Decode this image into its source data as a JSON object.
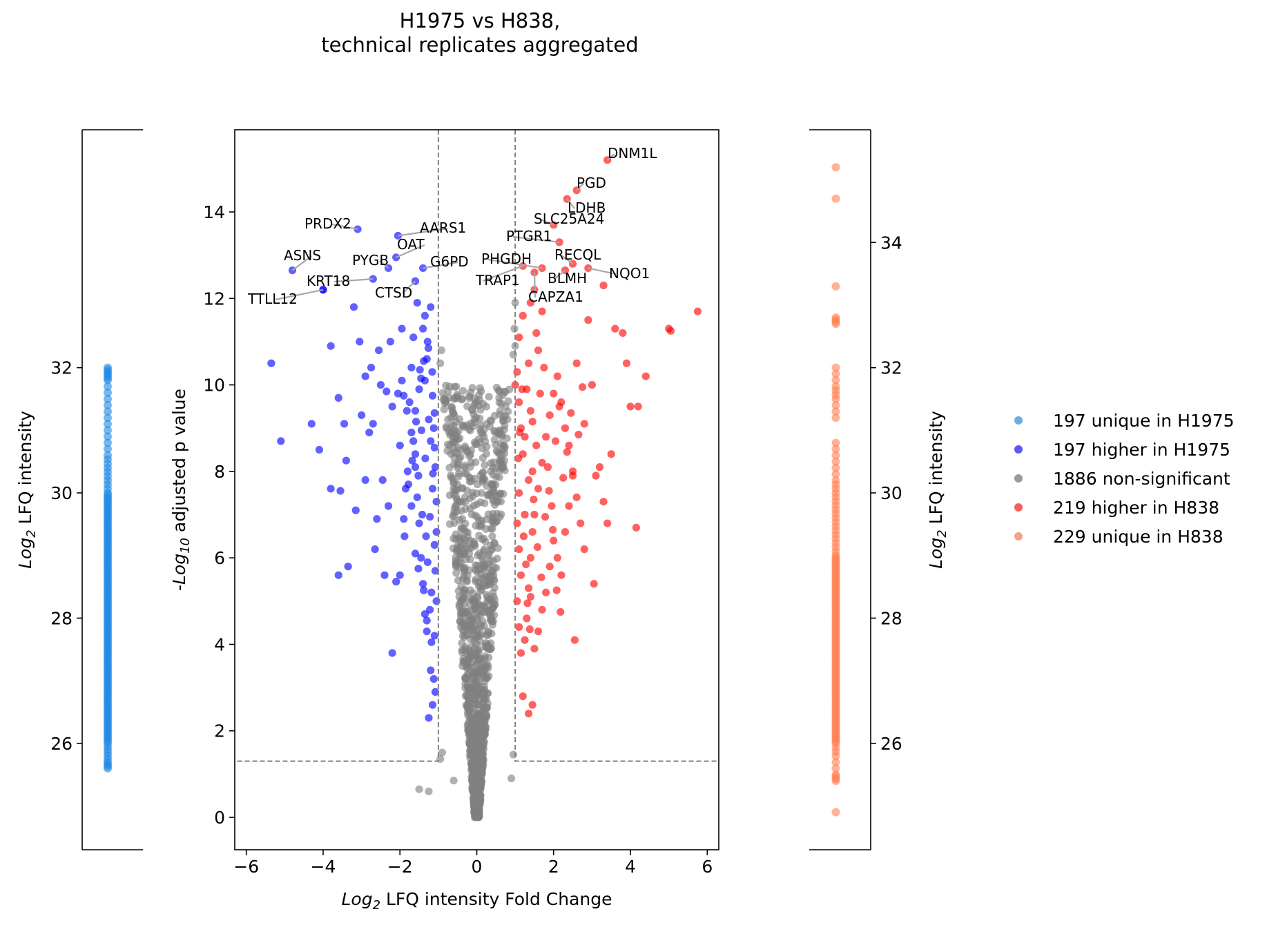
{
  "chart_data": {
    "type": "scatter",
    "title": "H1975 vs H838,\ntechnical replicates aggregated",
    "volcano": {
      "xlabel_log": "Log",
      "xlabel_sub": "2",
      "xlabel_rest": " LFQ intensity Fold Change",
      "ylabel_prefix": "-",
      "ylabel_log": "Log",
      "ylabel_sub": "10",
      "ylabel_rest": " adjusted p value",
      "xlim": [
        -6.3,
        6.3
      ],
      "ylim": [
        -0.75,
        15.9
      ],
      "xticks": [
        -6,
        -4,
        -2,
        0,
        2,
        4,
        6
      ],
      "xtick_labels": [
        "−6",
        "−4",
        "−2",
        "0",
        "2",
        "4",
        "6"
      ],
      "yticks": [
        0,
        2,
        4,
        6,
        8,
        10,
        12,
        14
      ],
      "ytick_labels": [
        "0",
        "2",
        "4",
        "6",
        "8",
        "10",
        "12",
        "14"
      ],
      "fc_threshold": 1,
      "p_threshold": 1.3,
      "labeled_points": [
        {
          "gene": "DNM1L",
          "x": 3.4,
          "y": 15.2
        },
        {
          "gene": "PGD",
          "x": 2.6,
          "y": 14.5
        },
        {
          "gene": "LDHB",
          "x": 2.35,
          "y": 14.3
        },
        {
          "gene": "SLC25A24",
          "x": 2.0,
          "y": 13.7
        },
        {
          "gene": "PTGR1",
          "x": 2.15,
          "y": 13.3
        },
        {
          "gene": "RECQL",
          "x": 2.5,
          "y": 12.8
        },
        {
          "gene": "NQO1",
          "x": 2.9,
          "y": 12.7
        },
        {
          "gene": "BLMH",
          "x": 2.3,
          "y": 12.65
        },
        {
          "gene": "CAPZA1",
          "x": 1.5,
          "y": 12.6
        },
        {
          "gene": "PHGDH",
          "x": 1.7,
          "y": 12.7
        },
        {
          "gene": "TRAP1",
          "x": 1.2,
          "y": 12.75
        },
        {
          "gene": "G6PD",
          "x": -1.4,
          "y": 12.7
        },
        {
          "gene": "AARS1",
          "x": -2.05,
          "y": 13.45
        },
        {
          "gene": "OAT",
          "x": -2.1,
          "y": 12.95
        },
        {
          "gene": "PYGB",
          "x": -2.3,
          "y": 12.7
        },
        {
          "gene": "PRDX2",
          "x": -3.1,
          "y": 13.6
        },
        {
          "gene": "ASNS",
          "x": -4.8,
          "y": 12.65
        },
        {
          "gene": "KRT18",
          "x": -2.7,
          "y": 12.45
        },
        {
          "gene": "CTSD",
          "x": -1.6,
          "y": 12.4
        },
        {
          "gene": "TTLL12",
          "x": -4.0,
          "y": 12.2
        }
      ],
      "sig_down_points": [
        [
          -5.35,
          10.5
        ],
        [
          -5.1,
          8.7
        ],
        [
          -4.1,
          8.5
        ],
        [
          -3.8,
          7.6
        ],
        [
          -3.55,
          7.55
        ],
        [
          -3.8,
          10.9
        ],
        [
          -4.0,
          12.2
        ],
        [
          -4.3,
          9.1
        ],
        [
          -3.6,
          9.7
        ],
        [
          -3.2,
          11.8
        ],
        [
          -3.05,
          11.0
        ],
        [
          -2.9,
          10.2
        ],
        [
          -2.55,
          10.8
        ],
        [
          -2.7,
          9.1
        ],
        [
          -2.35,
          9.85
        ],
        [
          -2.2,
          9.5
        ],
        [
          -2.05,
          9.8
        ],
        [
          -2.0,
          8.6
        ],
        [
          -2.3,
          7.2
        ],
        [
          -2.6,
          6.9
        ],
        [
          -2.9,
          7.8
        ],
        [
          -3.15,
          7.1
        ],
        [
          -3.4,
          8.25
        ],
        [
          -3.35,
          5.8
        ],
        [
          -3.6,
          5.6
        ],
        [
          -2.65,
          6.2
        ],
        [
          -2.4,
          5.6
        ],
        [
          -2.1,
          5.45
        ],
        [
          -2.0,
          5.6
        ],
        [
          -2.2,
          3.8
        ],
        [
          -1.9,
          6.9
        ],
        [
          -1.85,
          7.6
        ],
        [
          -1.8,
          8.0
        ],
        [
          -1.7,
          7.2
        ],
        [
          -1.95,
          10.1
        ],
        [
          -1.7,
          10.4
        ],
        [
          -1.6,
          9.4
        ],
        [
          -1.5,
          9.9
        ],
        [
          -1.4,
          11.3
        ],
        [
          -1.35,
          11.6
        ],
        [
          -1.3,
          10.6
        ],
        [
          -1.25,
          9.2
        ],
        [
          -1.2,
          8.7
        ],
        [
          -1.15,
          7.6
        ],
        [
          -1.1,
          6.3
        ],
        [
          -1.05,
          6.6
        ],
        [
          -1.05,
          5.0
        ],
        [
          -1.1,
          4.2
        ],
        [
          -1.2,
          3.4
        ],
        [
          -1.15,
          2.6
        ],
        [
          -1.25,
          2.3
        ],
        [
          -1.3,
          4.3
        ],
        [
          -1.35,
          4.7
        ],
        [
          -1.4,
          5.4
        ],
        [
          -1.45,
          6.0
        ],
        [
          -1.5,
          6.8
        ],
        [
          -1.55,
          7.4
        ],
        [
          -1.6,
          8.1
        ],
        [
          -1.65,
          8.7
        ],
        [
          -1.75,
          9.6
        ],
        [
          -1.45,
          10.15
        ],
        [
          -1.38,
          10.55
        ],
        [
          -1.28,
          11.0
        ],
        [
          -1.2,
          11.8
        ],
        [
          -1.15,
          9.75
        ],
        [
          -1.12,
          9.0
        ],
        [
          -1.08,
          8.1
        ],
        [
          -1.05,
          7.3
        ],
        [
          -1.08,
          5.7
        ],
        [
          -1.18,
          5.2
        ],
        [
          -1.22,
          4.8
        ],
        [
          -1.28,
          5.9
        ],
        [
          -1.32,
          6.5
        ],
        [
          -1.42,
          7.0
        ],
        [
          -1.52,
          7.9
        ],
        [
          -1.6,
          8.4
        ],
        [
          -1.7,
          8.9
        ],
        [
          -1.82,
          9.4
        ],
        [
          -1.9,
          9.75
        ],
        [
          -2.45,
          7.8
        ],
        [
          -2.8,
          8.9
        ],
        [
          -3.0,
          9.3
        ],
        [
          -2.5,
          10.0
        ],
        [
          -2.25,
          11.0
        ],
        [
          -1.95,
          11.3
        ],
        [
          -1.55,
          11.9
        ],
        [
          -1.65,
          11.1
        ],
        [
          -1.35,
          10.1
        ],
        [
          -1.48,
          10.35
        ],
        [
          -1.58,
          9.15
        ],
        [
          -1.68,
          8.25
        ],
        [
          -1.78,
          7.7
        ],
        [
          -1.88,
          6.5
        ],
        [
          -1.6,
          6.1
        ],
        [
          -1.52,
          5.75
        ],
        [
          -1.38,
          5.25
        ],
        [
          -1.3,
          4.55
        ],
        [
          -1.18,
          4.05
        ],
        [
          -1.12,
          3.2
        ],
        [
          -1.08,
          2.9
        ],
        [
          -2.75,
          10.4
        ],
        [
          -3.45,
          9.1
        ],
        [
          -1.22,
          6.95
        ],
        [
          -1.14,
          7.95
        ],
        [
          -1.1,
          8.55
        ],
        [
          -1.1,
          9.35
        ],
        [
          -1.16,
          10.3
        ],
        [
          -1.26,
          10.85
        ],
        [
          -1.34,
          8.3
        ],
        [
          -1.44,
          8.95
        ]
      ],
      "sig_up_points": [
        [
          1.0,
          10.0
        ],
        [
          1.05,
          10.3
        ],
        [
          1.1,
          9.6
        ],
        [
          1.15,
          9.0
        ],
        [
          1.2,
          8.4
        ],
        [
          1.25,
          8.8
        ],
        [
          1.3,
          9.9
        ],
        [
          1.35,
          10.5
        ],
        [
          1.4,
          9.4
        ],
        [
          1.45,
          8.0
        ],
        [
          1.1,
          7.5
        ],
        [
          1.05,
          6.8
        ],
        [
          1.1,
          6.2
        ],
        [
          1.15,
          5.6
        ],
        [
          1.05,
          5.0
        ],
        [
          1.1,
          4.4
        ],
        [
          1.15,
          3.8
        ],
        [
          1.25,
          4.1
        ],
        [
          1.3,
          4.6
        ],
        [
          1.35,
          5.3
        ],
        [
          1.4,
          6.0
        ],
        [
          1.45,
          6.6
        ],
        [
          1.5,
          7.0
        ],
        [
          1.6,
          7.6
        ],
        [
          1.7,
          8.2
        ],
        [
          1.8,
          8.8
        ],
        [
          1.9,
          9.3
        ],
        [
          2.0,
          9.8
        ],
        [
          2.1,
          10.2
        ],
        [
          2.2,
          9.6
        ],
        [
          2.3,
          9.0
        ],
        [
          2.4,
          8.6
        ],
        [
          2.5,
          8.0
        ],
        [
          2.6,
          7.4
        ],
        [
          2.7,
          6.8
        ],
        [
          2.8,
          6.2
        ],
        [
          2.0,
          6.4
        ],
        [
          1.9,
          5.8
        ],
        [
          1.8,
          5.2
        ],
        [
          1.7,
          4.8
        ],
        [
          1.6,
          4.3
        ],
        [
          1.5,
          3.9
        ],
        [
          1.4,
          5.1
        ],
        [
          2.2,
          5.6
        ],
        [
          2.1,
          6.0
        ],
        [
          2.3,
          6.6
        ],
        [
          2.4,
          7.2
        ],
        [
          2.5,
          7.9
        ],
        [
          2.6,
          10.5
        ],
        [
          2.8,
          9.1
        ],
        [
          3.0,
          10.0
        ],
        [
          3.1,
          7.9
        ],
        [
          3.2,
          8.1
        ],
        [
          3.3,
          7.3
        ],
        [
          3.4,
          6.8
        ],
        [
          3.5,
          8.4
        ],
        [
          3.6,
          11.3
        ],
        [
          3.8,
          11.2
        ],
        [
          3.9,
          10.5
        ],
        [
          4.0,
          9.5
        ],
        [
          4.2,
          9.5
        ],
        [
          4.4,
          10.2
        ],
        [
          4.15,
          6.7
        ],
        [
          2.55,
          4.1
        ],
        [
          3.05,
          5.4
        ],
        [
          1.2,
          2.8
        ],
        [
          1.45,
          2.6
        ],
        [
          1.35,
          2.4
        ],
        [
          1.1,
          11.1
        ],
        [
          1.2,
          11.6
        ],
        [
          1.55,
          11.2
        ],
        [
          1.5,
          12.2
        ],
        [
          1.4,
          11.9
        ],
        [
          1.7,
          11.7
        ],
        [
          2.9,
          11.5
        ],
        [
          3.3,
          12.3
        ],
        [
          5.0,
          11.3
        ],
        [
          5.05,
          11.25
        ],
        [
          5.75,
          11.7
        ],
        [
          1.6,
          10.8
        ],
        [
          1.25,
          7.0
        ],
        [
          1.35,
          7.8
        ],
        [
          1.45,
          9.15
        ],
        [
          1.55,
          8.6
        ],
        [
          1.65,
          9.8
        ],
        [
          1.75,
          10.4
        ],
        [
          1.85,
          8.1
        ],
        [
          1.95,
          7.2
        ],
        [
          2.05,
          8.7
        ],
        [
          2.15,
          9.5
        ],
        [
          1.08,
          8.3
        ],
        [
          1.12,
          8.9
        ],
        [
          1.18,
          9.9
        ],
        [
          1.22,
          6.5
        ],
        [
          1.28,
          5.85
        ],
        [
          1.32,
          4.95
        ],
        [
          1.38,
          4.35
        ],
        [
          1.48,
          7.35
        ],
        [
          1.58,
          6.25
        ],
        [
          1.68,
          5.55
        ],
        [
          1.78,
          6.95
        ],
        [
          1.88,
          7.55
        ],
        [
          1.98,
          6.65
        ],
        [
          2.08,
          5.25
        ],
        [
          2.18,
          4.75
        ],
        [
          2.25,
          7.85
        ],
        [
          2.35,
          8.45
        ],
        [
          2.45,
          9.35
        ],
        [
          2.65,
          8.85
        ],
        [
          2.75,
          9.95
        ]
      ],
      "nonsig_points": [
        [
          -1.5,
          0.65
        ],
        [
          -1.25,
          0.6
        ],
        [
          -0.6,
          0.85
        ],
        [
          0.9,
          0.9
        ],
        [
          -0.9,
          1.5
        ],
        [
          -0.95,
          1.35
        ],
        [
          0.95,
          1.45
        ],
        [
          -0.95,
          10.5
        ],
        [
          -0.92,
          10.8
        ],
        [
          0.95,
          10.7
        ],
        [
          1.0,
          10.9
        ],
        [
          0.98,
          11.3
        ],
        [
          1.0,
          11.9
        ],
        [
          -0.8,
          9.6
        ],
        [
          -0.75,
          9.2
        ],
        [
          0.75,
          9.5
        ],
        [
          0.8,
          9.2
        ],
        [
          -0.7,
          8.6
        ],
        [
          0.7,
          8.6
        ]
      ],
      "nonsig_density_count": 1200
    },
    "unique_strips": {
      "ylabel_log": "Log",
      "ylabel_sub": "2",
      "ylabel_rest": " LFQ intensity",
      "left": {
        "ylim": [
          24.3,
          35.8
        ],
        "yticks": [
          26,
          28,
          30,
          32
        ],
        "ytick_labels": [
          "26",
          "28",
          "30",
          "32"
        ],
        "values": [
          25.6,
          25.7,
          25.85,
          26.0,
          26.1,
          26.2,
          26.3,
          26.4,
          26.5,
          26.6,
          26.7,
          26.8,
          26.9,
          27.0,
          27.1,
          27.2,
          27.3,
          27.4,
          27.5,
          27.6,
          27.7,
          27.8,
          27.9,
          28.0,
          28.1,
          28.2,
          28.3,
          28.4,
          28.5,
          28.6,
          28.7,
          28.8,
          28.9,
          29.0,
          29.1,
          29.2,
          29.3,
          29.4,
          29.5,
          29.6,
          29.7,
          29.8,
          29.9,
          30.0,
          30.2,
          30.4,
          30.6,
          30.9,
          31.2,
          31.5,
          31.8,
          31.9,
          32.0
        ]
      },
      "right": {
        "ylim": [
          24.3,
          35.8
        ],
        "yticks": [
          26,
          28,
          30,
          32,
          34
        ],
        "ytick_labels": [
          "26",
          "28",
          "30",
          "32",
          "34"
        ],
        "values": [
          24.9,
          25.4,
          25.5,
          25.8,
          26.0,
          26.1,
          26.2,
          26.3,
          26.4,
          26.5,
          26.6,
          26.7,
          26.8,
          26.9,
          27.0,
          27.1,
          27.2,
          27.3,
          27.4,
          27.5,
          27.6,
          27.7,
          27.8,
          27.9,
          28.0,
          28.1,
          28.2,
          28.3,
          28.4,
          28.5,
          28.6,
          28.7,
          28.8,
          28.9,
          29.0,
          29.2,
          29.4,
          29.6,
          29.8,
          30.0,
          30.2,
          30.5,
          30.8,
          31.2,
          31.5,
          31.7,
          32.0,
          32.7,
          32.8,
          33.3,
          34.7,
          35.2
        ]
      }
    },
    "legend": [
      {
        "label": "197 unique in  H1975",
        "color": "#6aaee8"
      },
      {
        "label": "197 higher in  H1975",
        "color": "#5a5af0"
      },
      {
        "label": "1886 non-significant",
        "color": "#9a9a9a"
      },
      {
        "label": "219 higher in  H838",
        "color": "#f26060"
      },
      {
        "label": "229 unique in  H838",
        "color": "#f7a282"
      }
    ],
    "colors": {
      "unique_left": "#1e88e5",
      "down": "#0000ff",
      "nonsig": "#808080",
      "up": "#ff0000",
      "unique_right": "#ff7f50",
      "threshold": "#808080"
    }
  }
}
